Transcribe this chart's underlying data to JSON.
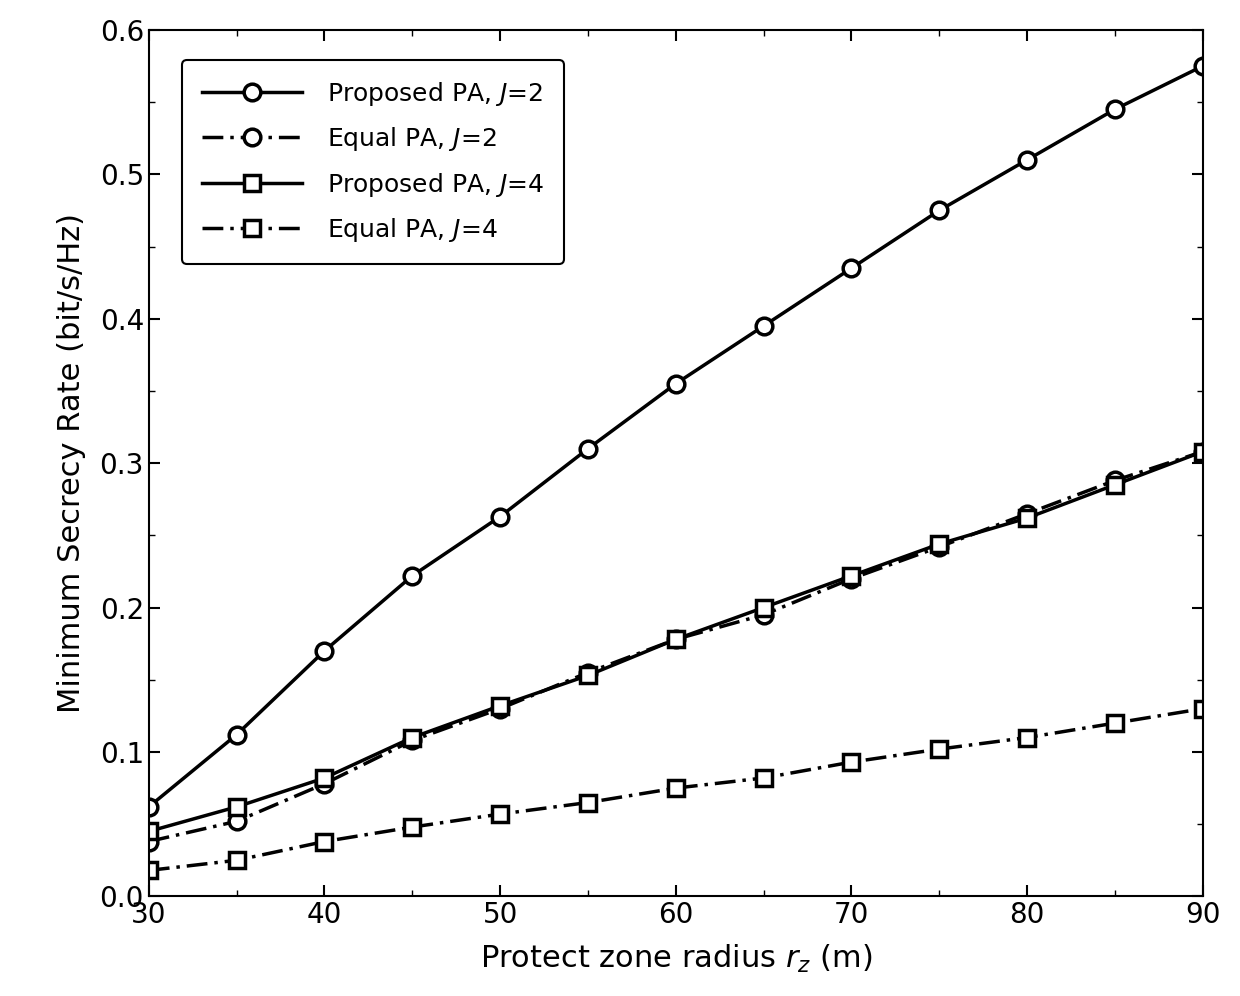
{
  "x": [
    30,
    35,
    40,
    45,
    50,
    55,
    60,
    65,
    70,
    75,
    80,
    85,
    90
  ],
  "proposed_J2": [
    0.062,
    0.112,
    0.17,
    0.222,
    0.263,
    0.31,
    0.355,
    0.395,
    0.435,
    0.475,
    0.51,
    0.545,
    0.575
  ],
  "equal_J2": [
    0.038,
    0.052,
    0.078,
    0.108,
    0.13,
    0.155,
    0.178,
    0.195,
    0.22,
    0.242,
    0.265,
    0.288,
    0.308
  ],
  "proposed_J4": [
    0.045,
    0.062,
    0.082,
    0.11,
    0.132,
    0.153,
    0.178,
    0.2,
    0.222,
    0.244,
    0.262,
    0.285,
    0.308
  ],
  "equal_J4": [
    0.018,
    0.025,
    0.038,
    0.048,
    0.057,
    0.065,
    0.075,
    0.082,
    0.093,
    0.102,
    0.11,
    0.12,
    0.13
  ],
  "xlabel": "Protect zone radius $r_z$ (m)",
  "ylabel": "Minimum Secrecy Rate (bit/s/Hz)",
  "xlim": [
    30,
    90
  ],
  "ylim": [
    0,
    0.6
  ],
  "xticks": [
    30,
    40,
    50,
    60,
    70,
    80,
    90
  ],
  "yticks": [
    0,
    0.1,
    0.2,
    0.3,
    0.4,
    0.5,
    0.6
  ],
  "legend": [
    "Proposed PA, $J$=2",
    "Equal PA, $J$=2",
    "Proposed PA, $J$=4",
    "Equal PA, $J$=4"
  ],
  "line_color": "#000000",
  "linewidth": 2.5,
  "markersize": 12
}
